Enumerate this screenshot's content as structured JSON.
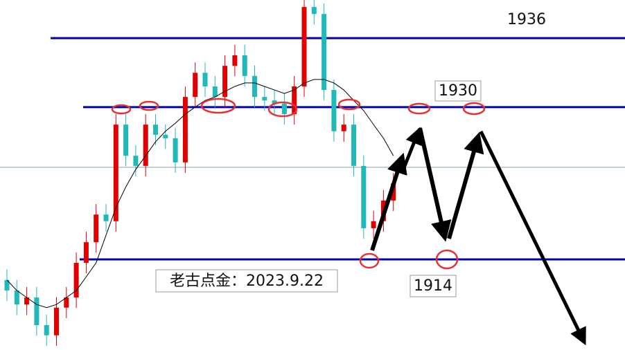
{
  "chart_data": {
    "type": "candlestick",
    "open": [
      20,
      17.0,
      13.0,
      15.0,
      7.1,
      4.2,
      12.1,
      15.0,
      24.9,
      30.8,
      38.7,
      36.8,
      64.4,
      55.5,
      52.6,
      64.4,
      61.5,
      60.5,
      53.6,
      72.3,
      79.2,
      75.3,
      72.3,
      81.2,
      84.2,
      78.3,
      72.3,
      71.3,
      70.4,
      67.4,
      75.3,
      98.0,
      96.0,
      74.3,
      62.5,
      64.4,
      52.6,
      34.8,
      36.8,
      42.7
    ],
    "high": [
      23,
      20,
      18,
      18,
      10.1,
      15.1,
      18,
      27.9,
      33.8,
      41.7,
      41.7,
      67.4,
      67.4,
      58.5,
      67.4,
      67.4,
      64.5,
      63.5,
      75.3,
      82.2,
      82.2,
      78.3,
      84.2,
      87.2,
      87.2,
      81.3,
      75.3,
      74.3,
      73.4,
      78.3,
      100,
      100,
      99,
      77.3,
      67.4,
      67.4,
      55.6,
      39.8,
      45.7,
      50.6
    ],
    "low": [
      14,
      10,
      10,
      4.1,
      1.2,
      1.2,
      9.1,
      12,
      21.9,
      27.8,
      33.8,
      33.8,
      52.5,
      49.6,
      49.6,
      58.5,
      57.5,
      50.6,
      50.6,
      69.3,
      72.3,
      69.3,
      69.3,
      78.2,
      75.3,
      69.3,
      68.3,
      67.4,
      64.4,
      64.4,
      72.3,
      93,
      71.3,
      59.5,
      59.5,
      49.6,
      31.8,
      31.8,
      33.8,
      39.7
    ],
    "close": [
      17.0,
      13.0,
      15.0,
      7.1,
      4.2,
      12.1,
      15.0,
      24.9,
      30.8,
      38.7,
      36.8,
      64.4,
      55.5,
      52.6,
      64.4,
      61.5,
      60.5,
      53.6,
      72.3,
      79.2,
      75.3,
      72.3,
      81.2,
      84.2,
      78.3,
      72.3,
      71.3,
      70.4,
      67.4,
      75.3,
      98.0,
      96.0,
      74.3,
      62.5,
      64.4,
      52.6,
      34.8,
      36.8,
      42.7,
      47.6
    ],
    "up_color": "#e00000",
    "down_color": "#20b8b8",
    "ma": {
      "color": "#000000",
      "values": [
        20.0,
        17.0,
        15.0,
        13.0,
        12.1,
        13.0,
        15.0,
        17.0,
        20.9,
        24.9,
        32.8,
        40.7,
        46.6,
        51.6,
        55.5,
        59.5,
        62.5,
        64.8,
        67.4,
        69.4,
        71.3,
        72.3,
        73.9,
        75.3,
        76.3,
        76.3,
        75.3,
        74.3,
        73.3,
        74.3,
        76.3,
        77.3,
        77.3,
        76.3,
        74.3,
        71.3,
        68.4,
        64.4,
        60.5,
        55.5
      ]
    },
    "ylim": [
      0,
      100
    ],
    "levels": [
      {
        "value": 89.1,
        "color": "#0000b0",
        "label": "1936"
      },
      {
        "value": 69.4,
        "color": "#0000b0",
        "label": "1930"
      },
      {
        "value": 25.9,
        "color": "#0000b0",
        "label": "1914"
      },
      {
        "value": 52.2,
        "color": "#8aa0b0"
      }
    ],
    "annotation": "老古点金：2023.9.22"
  }
}
